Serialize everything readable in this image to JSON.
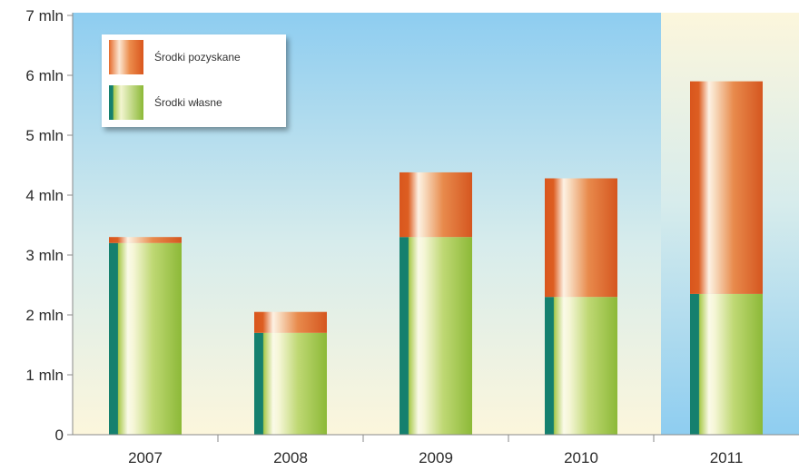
{
  "chart_data": {
    "type": "bar",
    "stacked": true,
    "categories": [
      "2007",
      "2008",
      "2009",
      "2010",
      "2011"
    ],
    "series": [
      {
        "name": "Środki własne",
        "values": [
          3.2,
          1.7,
          3.3,
          2.3,
          2.35
        ]
      },
      {
        "name": "Środki pozyskane",
        "values": [
          0.1,
          0.35,
          1.08,
          1.98,
          3.55
        ]
      }
    ],
    "ylim": [
      0,
      7
    ],
    "yticks": [
      0,
      1,
      2,
      3,
      4,
      5,
      6,
      7
    ],
    "ytick_labels": [
      "0",
      "1 mln",
      "2 mln",
      "3 mln",
      "4 mln",
      "5 mln",
      "6 mln",
      "7 mln"
    ],
    "legend": {
      "placement": "top-left",
      "items": [
        {
          "label": "Środki pozyskane",
          "series": "Środki pozyskane"
        },
        {
          "label": "Środki własne",
          "series": "Środki własne"
        }
      ]
    },
    "grid": false,
    "highlighted_category": "2011",
    "colors": {
      "background_top": "#8ecdf0",
      "background_bottom": "#fcf6dc",
      "own_funds": "#9ac23f",
      "own_funds_edge": "#15806e",
      "acquired_funds": "#e0652a",
      "acquired_funds_light": "#f7d3b2"
    }
  }
}
